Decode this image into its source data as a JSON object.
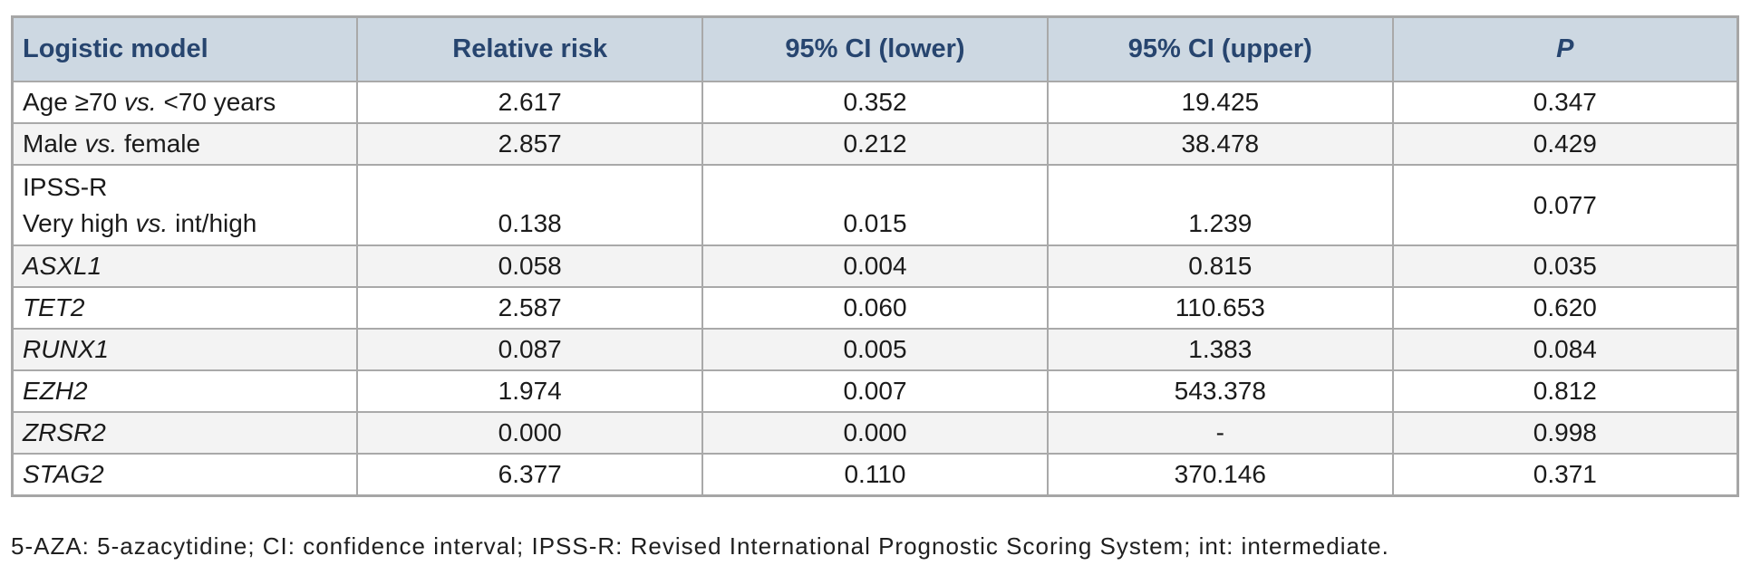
{
  "table": {
    "headers": [
      {
        "label": "Logistic model"
      },
      {
        "label": "Relative risk"
      },
      {
        "label": "95% CI (lower)"
      },
      {
        "label": "95% CI (upper)"
      },
      {
        "label": "P"
      }
    ],
    "rows": [
      {
        "model": [
          {
            "text": "Age ≥70 ",
            "italic": false
          },
          {
            "text": "vs.",
            "italic": true
          },
          {
            "text": " <70 years",
            "italic": false
          }
        ],
        "values": [
          "2.617",
          "0.352",
          "19.425",
          "0.347"
        ],
        "tall": false
      },
      {
        "model": [
          {
            "text": "Male ",
            "italic": false
          },
          {
            "text": "vs.",
            "italic": true
          },
          {
            "text": " female",
            "italic": false
          }
        ],
        "values": [
          "2.857",
          "0.212",
          "38.478",
          "0.429"
        ],
        "tall": false
      },
      {
        "model": [
          {
            "text": "IPSS-R\nVery high ",
            "italic": false
          },
          {
            "text": "vs.",
            "italic": true
          },
          {
            "text": " int/high",
            "italic": false
          }
        ],
        "values": [
          "\n0.138",
          "\n0.015",
          "\n1.239",
          "0.077"
        ],
        "tall": true
      },
      {
        "model": [
          {
            "text": "ASXL1",
            "italic": true
          }
        ],
        "values": [
          "0.058",
          "0.004",
          "0.815",
          "0.035"
        ],
        "tall": false
      },
      {
        "model": [
          {
            "text": "TET2",
            "italic": true
          }
        ],
        "values": [
          "2.587",
          "0.060",
          "110.653",
          "0.620"
        ],
        "tall": false
      },
      {
        "model": [
          {
            "text": "RUNX1",
            "italic": true
          }
        ],
        "values": [
          "0.087",
          "0.005",
          "1.383",
          "0.084"
        ],
        "tall": false
      },
      {
        "model": [
          {
            "text": "EZH2",
            "italic": true
          }
        ],
        "values": [
          "1.974",
          "0.007",
          "543.378",
          "0.812"
        ],
        "tall": false
      },
      {
        "model": [
          {
            "text": "ZRSR2",
            "italic": true
          }
        ],
        "values": [
          "0.000",
          "0.000",
          "-",
          "0.998"
        ],
        "tall": false
      },
      {
        "model": [
          {
            "text": "STAG2",
            "italic": true
          }
        ],
        "values": [
          "6.377",
          "0.110",
          "370.146",
          "0.371"
        ],
        "tall": false
      }
    ]
  },
  "footnote": "5-AZA: 5-azacytidine; CI: confidence interval; IPSS-R: Revised International Prognostic Scoring System; int: intermediate.",
  "colors": {
    "header_bg": "#cdd8e2",
    "header_text": "#27456f",
    "stripe": "#f3f3f3",
    "border": "#a9a9a9"
  }
}
